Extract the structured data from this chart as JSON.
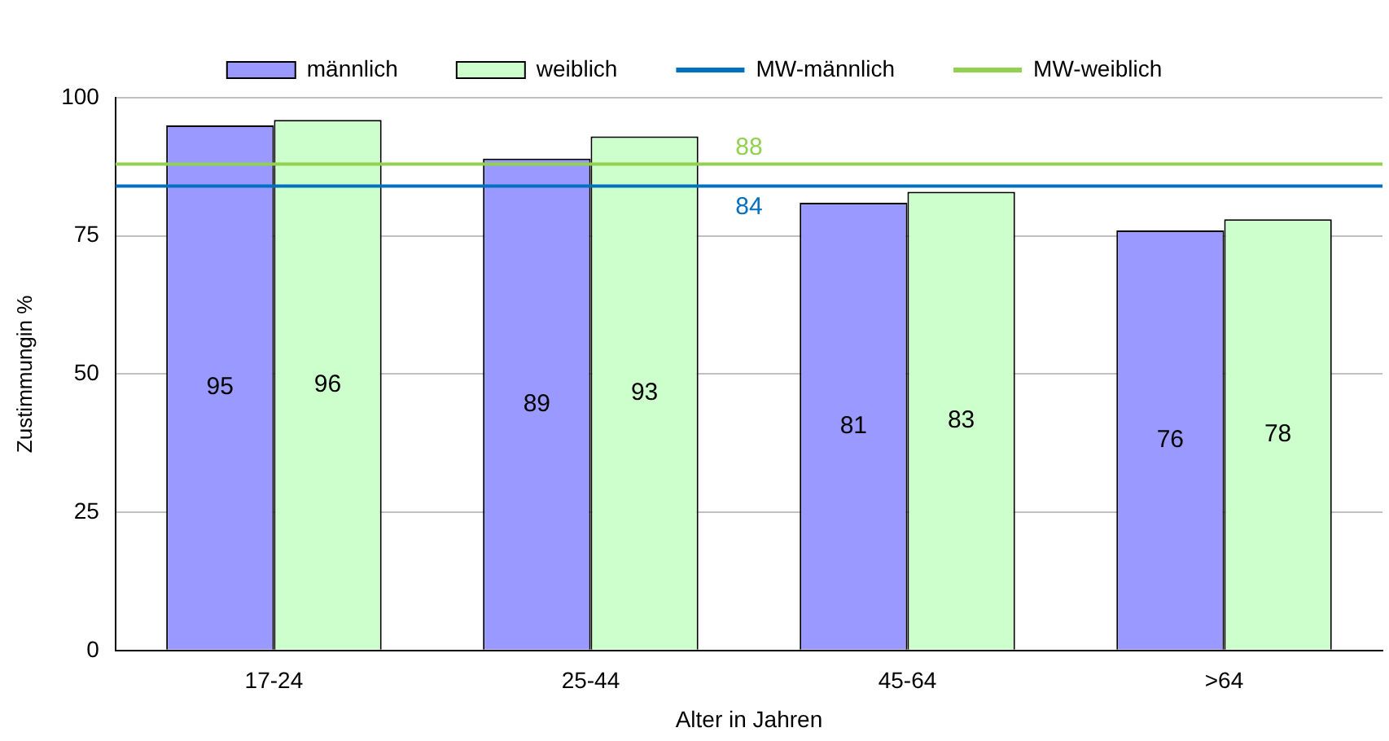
{
  "chart_data": {
    "type": "bar",
    "xlabel": "Alter in Jahren",
    "ylabel": "Zustimmungin %",
    "categories": [
      "17-24",
      "25-44",
      "45-64",
      ">64"
    ],
    "series": [
      {
        "name": "männlich",
        "color": "#9999ff",
        "values": [
          95,
          89,
          81,
          76
        ]
      },
      {
        "name": "weiblich",
        "color": "#ccffcc",
        "values": [
          96,
          93,
          83,
          78
        ]
      }
    ],
    "ref_lines": [
      {
        "axis": "y",
        "value": 84,
        "label": "MW-männlich",
        "color": "#0070c0"
      },
      {
        "axis": "y",
        "value": 88,
        "label": "MW-weiblich",
        "color": "#92d050"
      }
    ],
    "annotations": [
      {
        "text": "88",
        "y": 88
      },
      {
        "text": "84",
        "y": 84
      }
    ],
    "ylim": [
      0,
      100
    ],
    "yticks": [
      0,
      25,
      50,
      75,
      100
    ],
    "grid": "y",
    "legend": "top",
    "data_labels": true
  }
}
